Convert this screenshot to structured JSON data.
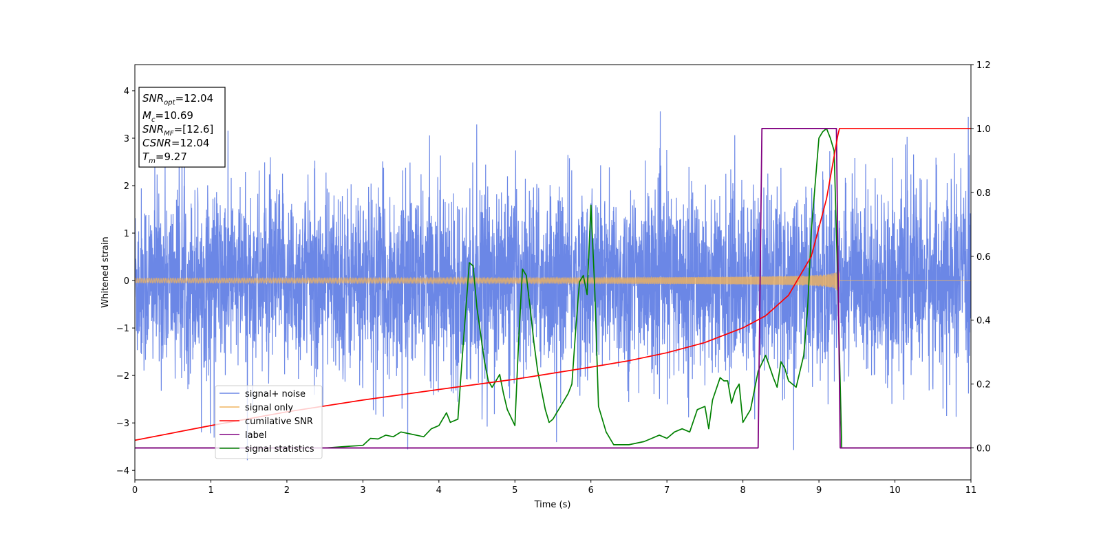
{
  "chart_data": {
    "type": "line",
    "xlabel": "Time (s)",
    "ylabel": "Whitened strain",
    "xlim": [
      0,
      11
    ],
    "ylim": [
      -4.2,
      4.55
    ],
    "y2lim": [
      -0.1,
      1.2
    ],
    "x_ticks": [
      "0",
      "1",
      "2",
      "3",
      "4",
      "5",
      "6",
      "7",
      "8",
      "9",
      "10",
      "11"
    ],
    "y_ticks": [
      "−4",
      "−3",
      "−2",
      "−1",
      "0",
      "1",
      "2",
      "3",
      "4"
    ],
    "y2_ticks": [
      "0.0",
      "0.2",
      "0.4",
      "0.6",
      "0.8",
      "1.0",
      "1.2"
    ],
    "grid": false,
    "legend_position": "lower-left",
    "info_box": {
      "snr_opt": {
        "main": "SNR",
        "sub": "opt",
        "value": "=12.04"
      },
      "mc": {
        "main": "M",
        "sub": "c",
        "value": "=10.69"
      },
      "snr_mf": {
        "main": "SNR",
        "sub": "MF",
        "value": "=[12.6]"
      },
      "csnr": {
        "main": "CSNR",
        "value": "=12.04"
      },
      "tm": {
        "main": "T",
        "sub": "m",
        "value": "=9.27"
      }
    },
    "series": [
      {
        "name": "signal+ noise",
        "axis": "left",
        "color": "#6b87e6",
        "kind": "noise",
        "note_values": {
          "typical_range": [
            -2.6,
            2.6
          ],
          "extreme_max": 4.17,
          "extreme_min": -3.8
        }
      },
      {
        "name": "signal only",
        "axis": "left",
        "color": "#f0b35e",
        "kind": "chirp",
        "amplitude": {
          "t_start": 0,
          "amp_start": 0.05,
          "t_merge": 9.27,
          "amp_merge": 1.0
        }
      },
      {
        "name": "cumilative SNR",
        "axis": "right",
        "color": "#ff0000",
        "x": [
          0,
          1,
          2,
          3,
          4,
          5,
          6,
          6.5,
          7,
          7.5,
          8,
          8.3,
          8.6,
          8.9,
          9.1,
          9.25,
          9.27,
          11
        ],
        "y": [
          0.024,
          0.07,
          0.113,
          0.15,
          0.183,
          0.215,
          0.253,
          0.273,
          0.298,
          0.33,
          0.376,
          0.414,
          0.478,
          0.6,
          0.78,
          0.98,
          1.0,
          1.0
        ]
      },
      {
        "name": "label",
        "axis": "right",
        "color": "#800080",
        "x": [
          0,
          8.2,
          8.25,
          9.23,
          9.28,
          11
        ],
        "y": [
          0,
          0,
          1,
          1,
          0,
          0
        ]
      },
      {
        "name": "signal statistics",
        "axis": "right",
        "color": "#008000",
        "x": [
          0,
          0.5,
          1,
          1.5,
          2,
          2.5,
          2.8,
          3,
          3.1,
          3.2,
          3.3,
          3.4,
          3.5,
          3.6,
          3.7,
          3.8,
          3.9,
          4.0,
          4.05,
          4.1,
          4.15,
          4.25,
          4.3,
          4.4,
          4.45,
          4.5,
          4.6,
          4.65,
          4.7,
          4.8,
          4.85,
          4.9,
          5.0,
          5.05,
          5.1,
          5.15,
          5.2,
          5.25,
          5.3,
          5.4,
          5.45,
          5.5,
          5.6,
          5.7,
          5.75,
          5.8,
          5.85,
          5.9,
          5.95,
          6.0,
          6.05,
          6.1,
          6.2,
          6.3,
          6.5,
          6.7,
          6.8,
          6.9,
          7.0,
          7.1,
          7.2,
          7.3,
          7.4,
          7.5,
          7.55,
          7.6,
          7.7,
          7.75,
          7.8,
          7.85,
          7.9,
          7.95,
          8.0,
          8.1,
          8.2,
          8.3,
          8.4,
          8.45,
          8.5,
          8.55,
          8.6,
          8.7,
          8.75,
          8.8,
          8.85,
          8.9,
          9.0,
          9.05,
          9.1,
          9.15,
          9.2,
          9.25,
          9.3,
          9.4,
          10,
          11
        ],
        "y": [
          0,
          0,
          0,
          0,
          0,
          0,
          0.005,
          0.008,
          0.03,
          0.028,
          0.04,
          0.035,
          0.05,
          0.045,
          0.04,
          0.035,
          0.06,
          0.07,
          0.09,
          0.11,
          0.08,
          0.09,
          0.26,
          0.58,
          0.57,
          0.44,
          0.27,
          0.21,
          0.19,
          0.23,
          0.17,
          0.12,
          0.07,
          0.34,
          0.56,
          0.54,
          0.44,
          0.33,
          0.24,
          0.12,
          0.08,
          0.09,
          0.13,
          0.17,
          0.2,
          0.37,
          0.52,
          0.54,
          0.48,
          0.76,
          0.5,
          0.13,
          0.05,
          0.01,
          0.01,
          0.02,
          0.03,
          0.04,
          0.03,
          0.05,
          0.06,
          0.05,
          0.12,
          0.13,
          0.06,
          0.15,
          0.22,
          0.21,
          0.21,
          0.14,
          0.18,
          0.2,
          0.08,
          0.12,
          0.24,
          0.29,
          0.22,
          0.19,
          0.27,
          0.25,
          0.21,
          0.19,
          0.24,
          0.29,
          0.43,
          0.68,
          0.97,
          0.99,
          1.0,
          0.97,
          0.93,
          0.5,
          0,
          0,
          0,
          0
        ]
      }
    ]
  }
}
